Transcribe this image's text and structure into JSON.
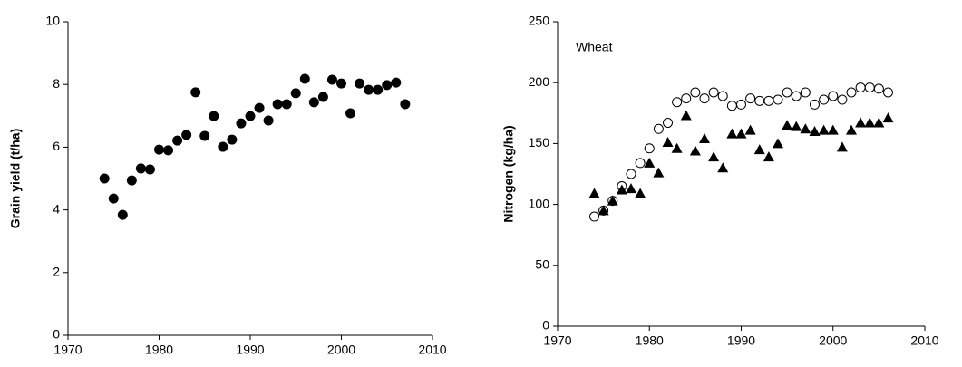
{
  "chart_data": [
    {
      "type": "scatter",
      "ylabel": "Grain yield (t/ha)",
      "x": [
        1974,
        1975,
        1976,
        1977,
        1978,
        1979,
        1980,
        1981,
        1982,
        1983,
        1984,
        1985,
        1986,
        1987,
        1988,
        1989,
        1990,
        1991,
        1992,
        1993,
        1994,
        1995,
        1996,
        1997,
        1998,
        1999,
        2000,
        2001,
        2002,
        2003,
        2004,
        2005,
        2006,
        2007
      ],
      "series": [
        {
          "color": "#000000",
          "marker": "circle",
          "values": [
            5.0,
            4.36,
            3.84,
            4.94,
            5.32,
            5.29,
            5.92,
            5.9,
            6.21,
            6.39,
            7.75,
            6.36,
            6.99,
            6.01,
            6.24,
            6.76,
            6.99,
            7.25,
            6.85,
            7.37,
            7.37,
            7.72,
            8.18,
            7.43,
            7.6,
            8.15,
            8.03,
            7.08,
            8.03,
            7.83,
            7.83,
            7.98,
            8.06,
            7.37
          ]
        }
      ],
      "xlim": [
        1970,
        2010
      ],
      "xticks": [
        1970,
        1980,
        1990,
        2000,
        2010
      ],
      "ylim": [
        0,
        10
      ],
      "yticks": [
        0,
        2,
        4,
        6,
        8,
        10
      ]
    },
    {
      "type": "scatter",
      "ylabel": "Nitrogen (kg/ha)",
      "annotation": "Wheat",
      "x": [
        1974,
        1975,
        1976,
        1977,
        1978,
        1979,
        1980,
        1981,
        1982,
        1983,
        1984,
        1985,
        1986,
        1987,
        1988,
        1989,
        1990,
        1991,
        1992,
        1993,
        1994,
        1995,
        1996,
        1997,
        1998,
        1999,
        2000,
        2001,
        2002,
        2003,
        2004,
        2005,
        2006
      ],
      "series": [
        {
          "color": "#000000",
          "marker": "circle-open",
          "values": [
            90,
            95,
            103,
            115,
            125,
            134,
            146,
            162,
            167,
            184,
            187,
            192,
            187,
            192,
            189,
            181,
            182,
            187,
            185,
            185,
            186,
            192,
            189,
            192,
            182,
            186,
            189,
            186,
            192,
            196,
            196,
            195,
            192
          ]
        },
        {
          "color": "#000000",
          "marker": "triangle",
          "values": [
            109,
            95,
            103,
            112,
            113,
            109,
            134,
            126,
            151,
            146,
            173,
            144,
            154,
            139,
            130,
            158,
            158,
            161,
            145,
            139,
            150,
            165,
            164,
            162,
            160,
            161,
            161,
            147,
            161,
            167,
            167,
            167,
            171
          ]
        }
      ],
      "xlim": [
        1970,
        2010
      ],
      "xticks": [
        1970,
        1980,
        1990,
        2000,
        2010
      ],
      "ylim": [
        0,
        250
      ],
      "yticks": [
        0,
        50,
        100,
        150,
        200,
        250
      ]
    }
  ]
}
